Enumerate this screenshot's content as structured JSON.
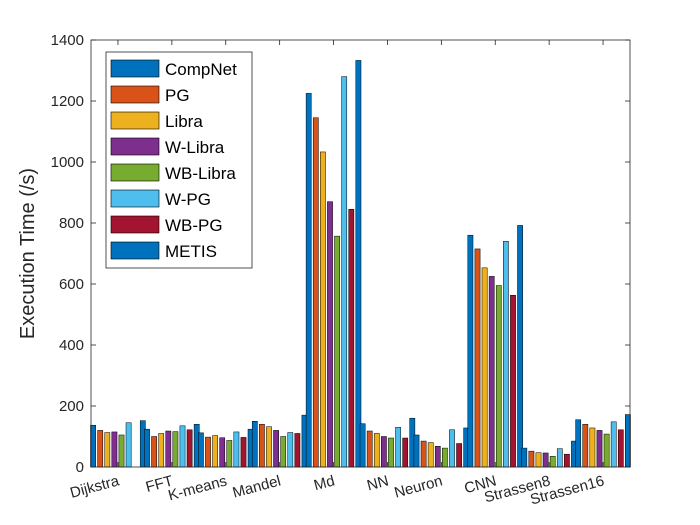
{
  "chart_data": {
    "type": "bar",
    "title": "",
    "xlabel": "",
    "ylabel": "Execution Time (/s)",
    "ylim": [
      0,
      1400
    ],
    "yticks": [
      0,
      200,
      400,
      600,
      800,
      1000,
      1200,
      1400
    ],
    "grid": false,
    "legend_position": "top-left",
    "categories": [
      "Dijkstra",
      "FFT",
      "K-means",
      "Mandel",
      "Md",
      "NN",
      "Neuron",
      "CNN",
      "Strassen8",
      "Strassen16"
    ],
    "series": [
      {
        "name": "CompNet",
        "color": "#0072BD",
        "values": [
          137,
          124,
          112,
          150,
          1225,
          142,
          105,
          760,
          62,
          155
        ]
      },
      {
        "name": "PG",
        "color": "#D95319",
        "values": [
          120,
          100,
          98,
          140,
          1145,
          118,
          85,
          715,
          52,
          140
        ]
      },
      {
        "name": "Libra",
        "color": "#EDB120",
        "values": [
          113,
          110,
          103,
          132,
          1033,
          110,
          80,
          653,
          47,
          128
        ]
      },
      {
        "name": "W-Libra",
        "color": "#7E2F8E",
        "values": [
          115,
          118,
          96,
          120,
          870,
          100,
          68,
          625,
          46,
          120
        ]
      },
      {
        "name": "WB-Libra",
        "color": "#77AC30",
        "values": [
          105,
          116,
          87,
          100,
          757,
          95,
          62,
          595,
          35,
          108
        ]
      },
      {
        "name": "W-PG",
        "color": "#4DBEEE",
        "values": [
          145,
          135,
          115,
          113,
          1280,
          130,
          122,
          740,
          60,
          148
        ]
      },
      {
        "name": "WB-PG",
        "color": "#A2142F",
        "values": [
          0,
          122,
          97,
          110,
          845,
          95,
          77,
          563,
          42,
          122
        ]
      },
      {
        "name": "METIS",
        "color": "#0072BD",
        "values": [
          152,
          140,
          124,
          170,
          1333,
          160,
          128,
          792,
          85,
          172
        ]
      }
    ]
  }
}
